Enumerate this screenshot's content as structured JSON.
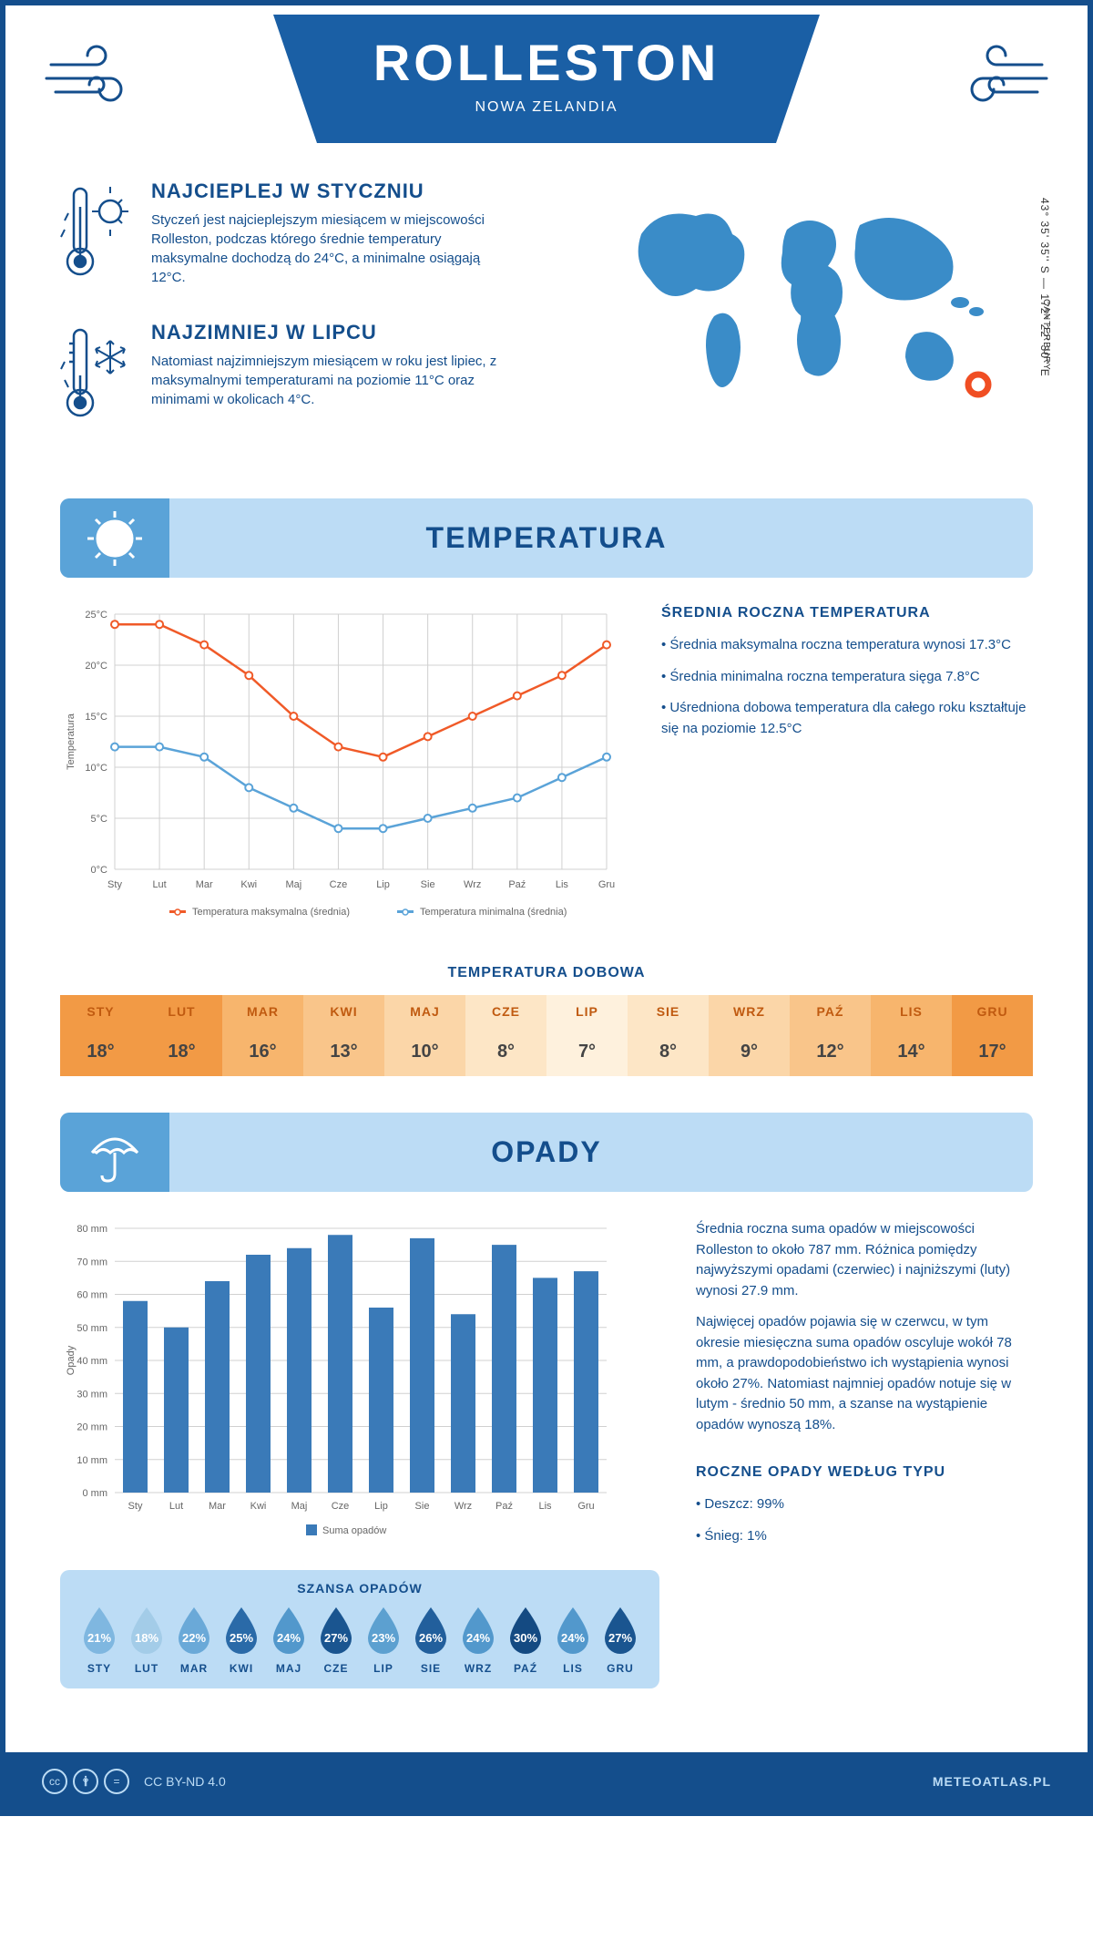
{
  "header": {
    "city": "ROLLESTON",
    "country": "NOWA ZELANDIA"
  },
  "intro": {
    "warm": {
      "title": "NAJCIEPLEJ W STYCZNIU",
      "text": "Styczeń jest najcieplejszym miesiącem w miejscowości Rolleston, podczas którego średnie temperatury maksymalne dochodzą do 24°C, a minimalne osiągają 12°C."
    },
    "cold": {
      "title": "NAJZIMNIEJ W LIPCU",
      "text": "Natomiast najzimniejszym miesiącem w roku jest lipiec, z maksymalnymi temperaturami na poziomie 11°C oraz minimami w okolicach 4°C."
    },
    "coords": "43° 35' 35'' S — 172° 22' 30'' E",
    "region": "CANTERBURY"
  },
  "temperature": {
    "section_title": "TEMPERATURA",
    "chart": {
      "months": [
        "Sty",
        "Lut",
        "Mar",
        "Kwi",
        "Maj",
        "Cze",
        "Lip",
        "Sie",
        "Wrz",
        "Paź",
        "Lis",
        "Gru"
      ],
      "max": [
        24,
        24,
        22,
        19,
        15,
        12,
        11,
        13,
        15,
        17,
        19,
        22
      ],
      "min": [
        12,
        12,
        11,
        8,
        6,
        4,
        4,
        5,
        6,
        7,
        9,
        11
      ],
      "ylim": [
        0,
        25
      ],
      "ytick_step": 5,
      "yticks": [
        "0°C",
        "5°C",
        "10°C",
        "15°C",
        "20°C",
        "25°C"
      ],
      "ylabel": "Temperatura",
      "max_color": "#f05a28",
      "min_color": "#5aa3d8",
      "grid_color": "#d0d0d0",
      "label_fontsize": 11,
      "legend_max": "Temperatura maksymalna (średnia)",
      "legend_min": "Temperatura minimalna (średnia)"
    },
    "info": {
      "title": "ŚREDNIA ROCZNA TEMPERATURA",
      "b1": "• Średnia maksymalna roczna temperatura wynosi 17.3°C",
      "b2": "• Średnia minimalna roczna temperatura sięga 7.8°C",
      "b3": "• Uśredniona dobowa temperatura dla całego roku kształtuje się na poziomie 12.5°C"
    },
    "daily": {
      "title": "TEMPERATURA DOBOWA",
      "months": [
        "STY",
        "LUT",
        "MAR",
        "KWI",
        "MAJ",
        "CZE",
        "LIP",
        "SIE",
        "WRZ",
        "PAŹ",
        "LIS",
        "GRU"
      ],
      "values": [
        "18°",
        "18°",
        "16°",
        "13°",
        "10°",
        "8°",
        "7°",
        "8°",
        "9°",
        "12°",
        "14°",
        "17°"
      ],
      "header_colors": [
        "#f29a45",
        "#f29a45",
        "#f7b56d",
        "#f9c58a",
        "#fbd6a8",
        "#fde6c6",
        "#fef1dd",
        "#fde6c6",
        "#fbd6a8",
        "#f9c58a",
        "#f7b56d",
        "#f29a45"
      ],
      "value_bg": "#f4a04c",
      "value_colors": [
        "#f29a45",
        "#f29a45",
        "#f7b56d",
        "#f9c58a",
        "#fbd6a8",
        "#fde6c6",
        "#fef1dd",
        "#fde6c6",
        "#fbd6a8",
        "#f9c58a",
        "#f7b56d",
        "#f29a45"
      ],
      "month_text_color": "#c05a10"
    }
  },
  "precipitation": {
    "section_title": "OPADY",
    "chart": {
      "months": [
        "Sty",
        "Lut",
        "Mar",
        "Kwi",
        "Maj",
        "Cze",
        "Lip",
        "Sie",
        "Wrz",
        "Paź",
        "Lis",
        "Gru"
      ],
      "values": [
        58,
        50,
        64,
        72,
        74,
        78,
        56,
        77,
        54,
        75,
        65,
        67
      ],
      "ylim": [
        0,
        80
      ],
      "ytick_step": 10,
      "yticks": [
        "0 mm",
        "10 mm",
        "20 mm",
        "30 mm",
        "40 mm",
        "50 mm",
        "60 mm",
        "70 mm",
        "80 mm"
      ],
      "ylabel": "Opady",
      "bar_color": "#3a7ab8",
      "grid_color": "#d0d0d0",
      "legend": "Suma opadów"
    },
    "info": {
      "p1": "Średnia roczna suma opadów w miejscowości Rolleston to około 787 mm. Różnica pomiędzy najwyższymi opadami (czerwiec) i najniższymi (luty) wynosi 27.9 mm.",
      "p2": "Najwięcej opadów pojawia się w czerwcu, w tym okresie miesięczna suma opadów oscyluje wokół 78 mm, a prawdopodobieństwo ich wystąpienia wynosi około 27%. Natomiast najmniej opadów notuje się w lutym - średnio 50 mm, a szanse na wystąpienie opadów wynoszą 18%.",
      "types_title": "ROCZNE OPADY WEDŁUG TYPU",
      "t1": "• Deszcz: 99%",
      "t2": "• Śnieg: 1%"
    },
    "chance": {
      "title": "SZANSA OPADÓW",
      "months": [
        "STY",
        "LUT",
        "MAR",
        "KWI",
        "MAJ",
        "CZE",
        "LIP",
        "SIE",
        "WRZ",
        "PAŹ",
        "LIS",
        "GRU"
      ],
      "pct": [
        "21%",
        "18%",
        "22%",
        "25%",
        "24%",
        "27%",
        "23%",
        "26%",
        "24%",
        "30%",
        "24%",
        "27%"
      ],
      "colors": [
        "#7fb7e0",
        "#a3cce8",
        "#6aa9d8",
        "#2a6aa8",
        "#5298cc",
        "#1a5590",
        "#5ca0d0",
        "#225f9c",
        "#5298cc",
        "#144a82",
        "#5298cc",
        "#1a5590"
      ]
    }
  },
  "footer": {
    "license": "CC BY-ND 4.0",
    "site": "METEOATLAS.PL"
  },
  "colors": {
    "primary": "#144e8c",
    "light_blue": "#bcdcf5",
    "mid_blue": "#5aa3d8",
    "orange": "#f05a28",
    "marker": "#f04e23"
  }
}
